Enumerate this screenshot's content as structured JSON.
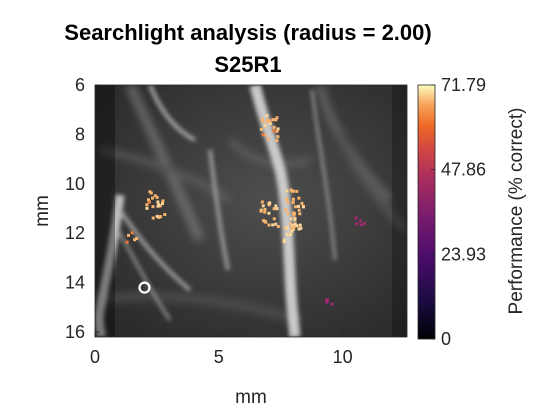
{
  "chart_data": {
    "type": "heatmap",
    "title": "Searchlight analysis (radius = 2.00)",
    "subtitle": "S25R1",
    "xlabel": "mm",
    "ylabel": "mm",
    "xlim": [
      0,
      12.6
    ],
    "ylim": [
      6,
      16.2
    ],
    "y_reversed": true,
    "x_ticks": [
      0,
      5,
      10
    ],
    "y_ticks": [
      6,
      8,
      10,
      12,
      14,
      16
    ],
    "background": "grayscale vessel image",
    "colormap": "inferno-like (black to purple to orange to cream)",
    "colorbar": {
      "label": "Performance (% correct)",
      "min": 0,
      "max": 71.79,
      "ticks": [
        "0",
        "23.93",
        "47.86",
        "71.79"
      ]
    },
    "marker": {
      "shape": "circle",
      "color": "#ffffff",
      "x": 2.0,
      "y": 14.2
    },
    "highlight_clusters": [
      {
        "x": 7.9,
        "y": 11.8,
        "value": 68
      },
      {
        "x": 7.0,
        "y": 11.2,
        "value": 66
      },
      {
        "x": 8.0,
        "y": 10.7,
        "value": 64
      },
      {
        "x": 7.0,
        "y": 7.7,
        "value": 62
      },
      {
        "x": 1.4,
        "y": 12.1,
        "value": 60
      },
      {
        "x": 2.4,
        "y": 10.8,
        "value": 63
      },
      {
        "x": 10.6,
        "y": 11.5,
        "value": 30
      },
      {
        "x": 9.5,
        "y": 14.8,
        "value": 28
      }
    ]
  }
}
